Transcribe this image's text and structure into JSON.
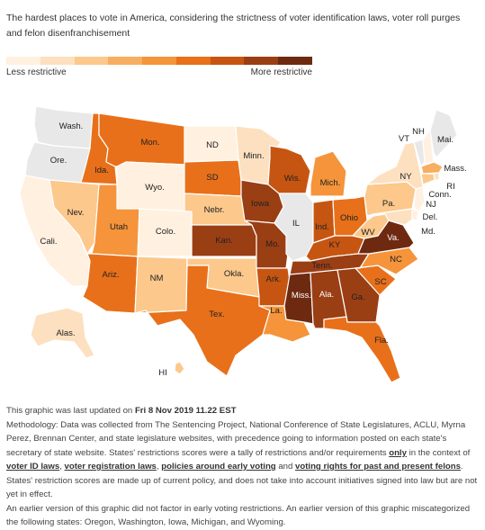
{
  "subtitle": "The hardest places to vote in America, considering the strictness of voter identification laws, voter roll purges and felon disenfranchisement",
  "legend": {
    "left_label": "Less restrictive",
    "right_label": "More restrictive",
    "colors": [
      "#fff0e0",
      "#fde0c0",
      "#fcc88c",
      "#f8ae60",
      "#f5943a",
      "#e8701a",
      "#c65512",
      "#9a3e14",
      "#6e2a10"
    ]
  },
  "colors": {
    "c0": "#e8e8e8",
    "c1": "#fff0e0",
    "c2": "#fde0c0",
    "c3": "#fcc88c",
    "c4": "#f8ae60",
    "c5": "#f5943a",
    "c6": "#e8701a",
    "c7": "#c65512",
    "c8": "#9a3e14",
    "c9": "#6e2a10"
  },
  "states": {
    "wash": "Wash.",
    "ore": "Ore.",
    "cali": "Cali.",
    "ida": "Ida.",
    "nev": "Nev.",
    "mon": "Mon.",
    "wyo": "Wyo.",
    "utah": "Utah",
    "ariz": "Ariz.",
    "colo": "Colo.",
    "nm": "NM",
    "nd": "ND",
    "sd": "SD",
    "nebr": "Nebr.",
    "kan": "Kan.",
    "okla": "Okla.",
    "tex": "Tex.",
    "minn": "Minn.",
    "iowa": "Iowa",
    "mo": "Mo.",
    "ark": "Ark.",
    "la": "La.",
    "wis": "Wis.",
    "il": "IL",
    "mich": "Mich.",
    "ind": "Ind.",
    "ohio": "Ohio",
    "ky": "KY",
    "tenn": "Tenn.",
    "miss": "Miss.",
    "ala": "Ala.",
    "ga": "Ga.",
    "fla": "Fla.",
    "sc": "SC",
    "nc": "NC",
    "va": "Va.",
    "wv": "WV",
    "pa": "Pa.",
    "ny": "NY",
    "vt": "VT",
    "nh": "NH",
    "mai": "Mai.",
    "mass": "Mass.",
    "ri": "RI",
    "conn": "Conn.",
    "nj": "NJ",
    "del": "Del.",
    "md": "Md.",
    "alas": "Alas.",
    "hi": "HI"
  },
  "footer": {
    "updated_prefix": "This graphic was last updated on ",
    "updated_date": "Fri 8 Nov 2019 11.22 EST",
    "method_1": "Methodology: Data was collected from The Sentencing Project, National Conference of State Legislatures, ACLU, Myrna Perez, Brennan Center, and state legislature websites, with precedence going to information posted on each state's secretary of state website. States' restrictions scores were a tally of restrictions and/or requirements ",
    "only": "only",
    "method_2": " in the context of ",
    "link_voter_id": "voter ID laws",
    "comma1": ", ",
    "link_voter_reg": "voter registration laws",
    "comma2": ", ",
    "link_early": "policies around early voting",
    "and": " and ",
    "link_felons": "voting rights for past and present felons",
    "method_3": ". States' restriction scores are made up of current policy, and does not take into account initiatives signed into law but are not yet in effect.",
    "note": "An earlier version of this graphic did not factor in early voting restrictions. An earlier version of this graphic miscategorized the following states: Oregon, Washington, Iowa, Michigan, and Wyoming."
  }
}
